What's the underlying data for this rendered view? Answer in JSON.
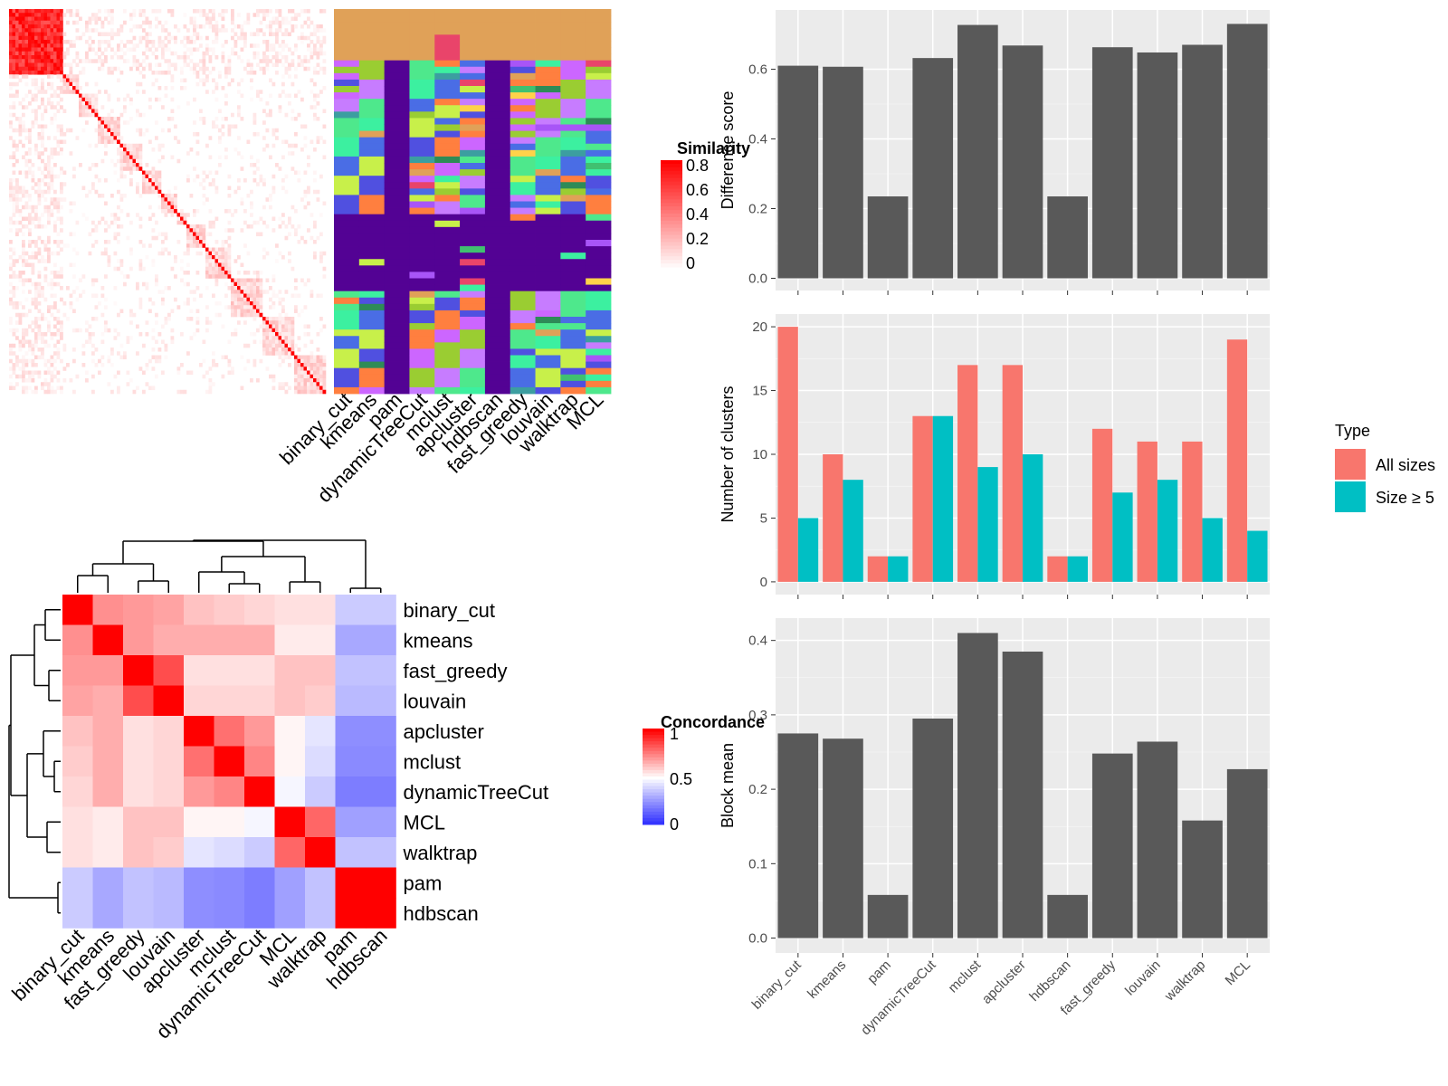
{
  "chart_data": [
    {
      "type": "heatmap",
      "name": "similarity-heatmap",
      "legend_title": "Similarity",
      "legend_ticks": [
        "0.8",
        "0.6",
        "0.4",
        "0.2",
        "0"
      ],
      "range": [
        0,
        0.85
      ],
      "colors": {
        "low": "#ffffff",
        "high": "#ff0000"
      }
    },
    {
      "type": "heatmap",
      "name": "cluster-assignment-heatmap",
      "columns": [
        "binary_cut",
        "kmeans",
        "pam",
        "dynamicTreeCut",
        "mclust",
        "apcluster",
        "hdbscan",
        "fast_greedy",
        "louvain",
        "walktrap",
        "MCL"
      ]
    },
    {
      "type": "heatmap",
      "name": "concordance-heatmap",
      "legend_title": "Concordance",
      "legend_ticks": [
        "1",
        "0.5",
        "0"
      ],
      "colors": {
        "low": "#0000ff",
        "mid": "#ffffff",
        "high": "#ff0000"
      },
      "labels": [
        "binary_cut",
        "kmeans",
        "fast_greedy",
        "louvain",
        "apcluster",
        "mclust",
        "dynamicTreeCut",
        "MCL",
        "walktrap",
        "pam",
        "hdbscan"
      ],
      "values": [
        [
          1.0,
          0.72,
          0.7,
          0.68,
          0.62,
          0.6,
          0.58,
          0.56,
          0.56,
          0.38,
          0.38
        ],
        [
          0.72,
          1.0,
          0.7,
          0.66,
          0.66,
          0.66,
          0.66,
          0.54,
          0.54,
          0.3,
          0.3
        ],
        [
          0.7,
          0.7,
          1.0,
          0.85,
          0.56,
          0.56,
          0.56,
          0.62,
          0.62,
          0.36,
          0.36
        ],
        [
          0.68,
          0.66,
          0.85,
          1.0,
          0.58,
          0.58,
          0.58,
          0.62,
          0.6,
          0.34,
          0.34
        ],
        [
          0.62,
          0.66,
          0.56,
          0.58,
          1.0,
          0.78,
          0.7,
          0.52,
          0.44,
          0.24,
          0.24
        ],
        [
          0.6,
          0.66,
          0.56,
          0.58,
          0.78,
          1.0,
          0.74,
          0.52,
          0.42,
          0.23,
          0.23
        ],
        [
          0.58,
          0.66,
          0.56,
          0.58,
          0.7,
          0.74,
          1.0,
          0.48,
          0.38,
          0.2,
          0.2
        ],
        [
          0.56,
          0.54,
          0.62,
          0.62,
          0.52,
          0.52,
          0.48,
          1.0,
          0.8,
          0.28,
          0.28
        ],
        [
          0.56,
          0.54,
          0.62,
          0.6,
          0.44,
          0.42,
          0.38,
          0.8,
          1.0,
          0.36,
          0.36
        ],
        [
          0.38,
          0.3,
          0.36,
          0.34,
          0.24,
          0.23,
          0.2,
          0.28,
          0.36,
          1.0,
          1.0
        ],
        [
          0.38,
          0.3,
          0.36,
          0.34,
          0.24,
          0.23,
          0.2,
          0.28,
          0.36,
          1.0,
          1.0
        ]
      ]
    },
    {
      "type": "bar",
      "name": "difference-score",
      "categories": [
        "binary_cut",
        "kmeans",
        "pam",
        "dynamicTreeCut",
        "mclust",
        "apcluster",
        "hdbscan",
        "fast_greedy",
        "louvain",
        "walktrap",
        "MCL"
      ],
      "values": [
        0.61,
        0.607,
        0.235,
        0.632,
        0.727,
        0.668,
        0.235,
        0.663,
        0.648,
        0.67,
        0.73
      ],
      "ylabel": "Difference score",
      "yticks": [
        "0.0",
        "0.2",
        "0.4",
        "0.6"
      ],
      "ylim": [
        -0.035,
        0.77
      ],
      "color": "#595959"
    },
    {
      "type": "bar",
      "name": "number-of-clusters",
      "categories": [
        "binary_cut",
        "kmeans",
        "pam",
        "dynamicTreeCut",
        "mclust",
        "apcluster",
        "hdbscan",
        "fast_greedy",
        "louvain",
        "walktrap",
        "MCL"
      ],
      "series": [
        {
          "name": "All sizes",
          "values": [
            20,
            10,
            2,
            13,
            17,
            17,
            2,
            12,
            11,
            11,
            19
          ],
          "color": "#f8766d"
        },
        {
          "name": "Size ≥ 5",
          "values": [
            5,
            8,
            2,
            13,
            9,
            10,
            2,
            7,
            8,
            5,
            4
          ],
          "color": "#00bfc4"
        }
      ],
      "ylabel": "Number of clusters",
      "yticks": [
        "0",
        "5",
        "10",
        "15",
        "20"
      ],
      "ylim": [
        -1,
        21
      ],
      "legend_title": "Type",
      "legend_position": "right"
    },
    {
      "type": "bar",
      "name": "block-mean",
      "categories": [
        "binary_cut",
        "kmeans",
        "pam",
        "dynamicTreeCut",
        "mclust",
        "apcluster",
        "hdbscan",
        "fast_greedy",
        "louvain",
        "walktrap",
        "MCL"
      ],
      "values": [
        0.275,
        0.268,
        0.058,
        0.295,
        0.41,
        0.385,
        0.058,
        0.248,
        0.264,
        0.158,
        0.227
      ],
      "ylabel": "Block mean",
      "yticks": [
        "0.0",
        "0.1",
        "0.2",
        "0.3",
        "0.4"
      ],
      "ylim": [
        -0.02,
        0.43
      ],
      "color": "#595959"
    }
  ]
}
